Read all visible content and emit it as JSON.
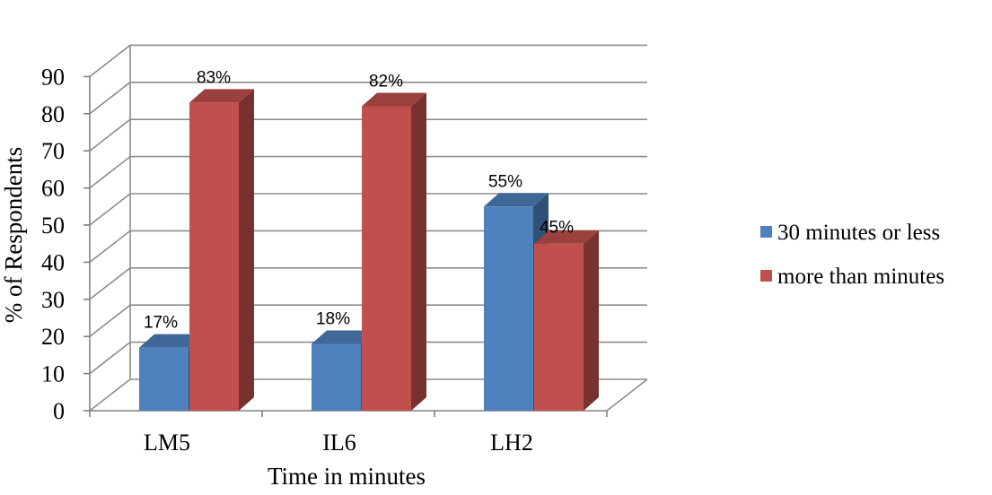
{
  "chart_data": {
    "type": "bar",
    "categories": [
      "LM5",
      "IL6",
      "LH2"
    ],
    "series": [
      {
        "name": "30 minutes or less",
        "values": [
          17,
          18,
          55
        ],
        "labels": [
          "17%",
          "18%",
          "55%"
        ],
        "color": "#4F81BD"
      },
      {
        "name": "more than minutes",
        "values": [
          83,
          82,
          45
        ],
        "labels": [
          "83%",
          "82%",
          "45%"
        ],
        "color": "#C0504D"
      }
    ],
    "xlabel": "Time in minutes",
    "ylabel": "% of Respondents",
    "ylim": [
      0,
      90
    ],
    "yticks": [
      "0",
      "10",
      "20",
      "30",
      "40",
      "50",
      "60",
      "70",
      "80",
      "90"
    ],
    "grid": true,
    "legend_position": "right",
    "style": "3d-clustered-column"
  }
}
